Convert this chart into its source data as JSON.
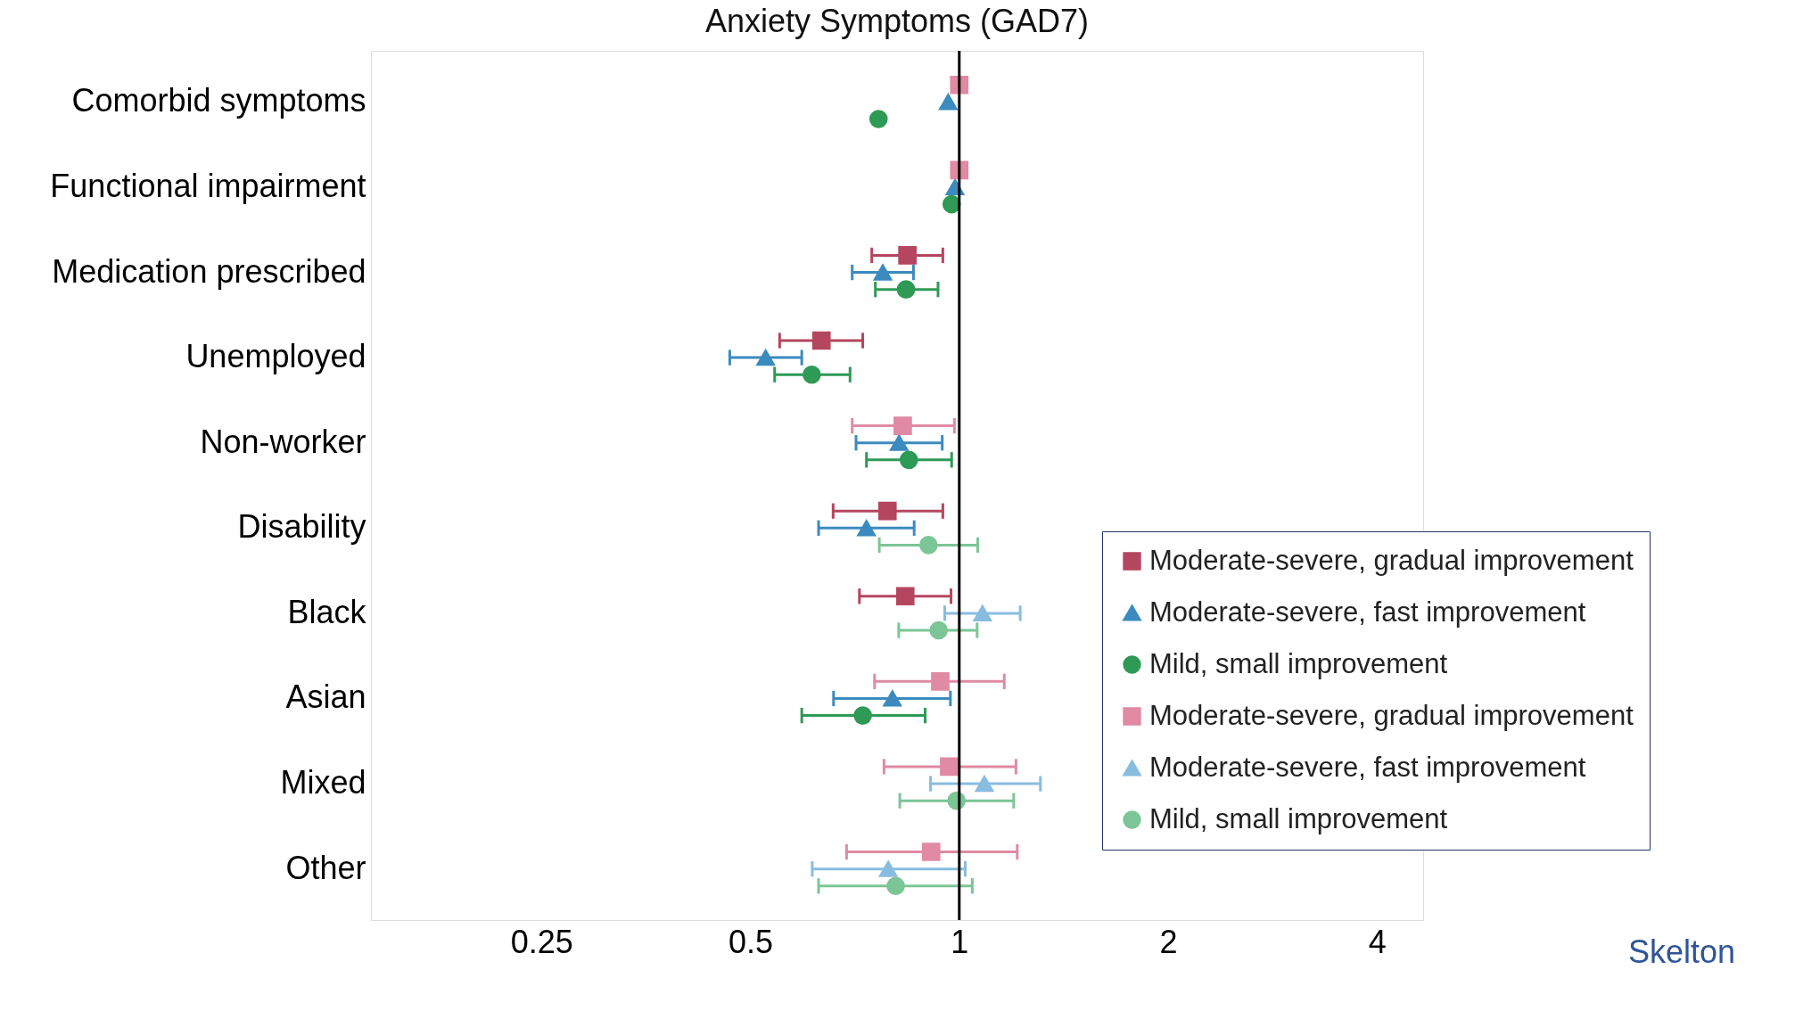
{
  "chart_data": {
    "type": "scatter",
    "orientation": "horizontal",
    "title": "Anxiety Symptoms (GAD7)",
    "categories": [
      "Comorbid symptoms",
      "Functional impairment",
      "Medication prescribed",
      "Unemployed",
      "Non-worker",
      "Disability",
      "Black",
      "Asian",
      "Mixed",
      "Other"
    ],
    "log": "x",
    "xlim": [
      0.142,
      4.66
    ],
    "xticks": [
      0.25,
      0.5,
      1,
      2,
      4
    ],
    "grid": false,
    "legend": "bottom right",
    "ref_lines": [
      {
        "axis": "x",
        "value": 1
      }
    ],
    "annotations": [
      "Skelton"
    ],
    "series": [
      {
        "name": "Moderate-severe, gradual improvement",
        "color": "#b5465f",
        "marker": "square",
        "values": [
          null,
          null,
          0.842,
          0.633,
          null,
          0.788,
          0.836,
          null,
          null,
          null
        ],
        "errors": [
          null,
          null,
          [
            0.748,
            0.947
          ],
          [
            0.551,
            0.726
          ],
          null,
          [
            0.658,
            0.947
          ],
          [
            0.718,
            0.973
          ],
          null,
          null,
          null
        ]
      },
      {
        "name": "Moderate-severe, fast improvement",
        "color": "#3b8bbf",
        "marker": "triangle",
        "values": [
          0.964,
          0.986,
          0.776,
          0.526,
          0.819,
          0.735,
          null,
          0.801,
          null,
          null
        ],
        "errors": [
          null,
          null,
          [
            0.701,
            0.859
          ],
          [
            0.467,
            0.593
          ],
          [
            0.71,
            0.945
          ],
          [
            0.627,
            0.861
          ],
          null,
          [
            0.659,
            0.971
          ],
          null,
          null
        ]
      },
      {
        "name": "Mild, small improvement",
        "color": "#2e9a55",
        "marker": "circle",
        "values": [
          0.765,
          0.975,
          0.838,
          0.613,
          0.846,
          null,
          null,
          0.726,
          null,
          null
        ],
        "errors": [
          null,
          null,
          [
            0.757,
            0.932
          ],
          [
            0.542,
            0.696
          ],
          [
            0.735,
            0.975
          ],
          null,
          null,
          [
            0.593,
            0.893
          ],
          null,
          null
        ]
      },
      {
        "name": "Moderate-severe, gradual improvement",
        "color": "#e08aa3",
        "marker": "square",
        "values": [
          1.0,
          1.0,
          null,
          null,
          0.829,
          null,
          null,
          0.939,
          0.967,
          0.911
        ],
        "errors": [
          null,
          null,
          null,
          null,
          [
            0.701,
            0.984
          ],
          null,
          null,
          [
            0.755,
            1.161
          ],
          [
            0.779,
            1.207
          ],
          [
            0.688,
            1.212
          ]
        ]
      },
      {
        "name": "Moderate-severe, fast improvement",
        "color": "#88bde0",
        "marker": "triangle",
        "values": [
          null,
          null,
          null,
          null,
          null,
          null,
          1.08,
          null,
          1.087,
          0.79
        ],
        "errors": [
          null,
          null,
          null,
          null,
          null,
          null,
          [
            0.953,
            1.224
          ],
          null,
          [
            0.909,
            1.309
          ],
          [
            0.614,
            1.02
          ]
        ]
      },
      {
        "name": "Mild, small improvement",
        "color": "#7cc596",
        "marker": "circle",
        "values": [
          null,
          null,
          null,
          null,
          null,
          0.903,
          0.934,
          null,
          0.991,
          0.81
        ],
        "errors": [
          null,
          null,
          null,
          null,
          null,
          [
            0.767,
            1.063
          ],
          [
            0.818,
            1.061
          ],
          null,
          [
            0.821,
            1.198
          ],
          [
            0.627,
            1.044
          ]
        ]
      }
    ]
  }
}
